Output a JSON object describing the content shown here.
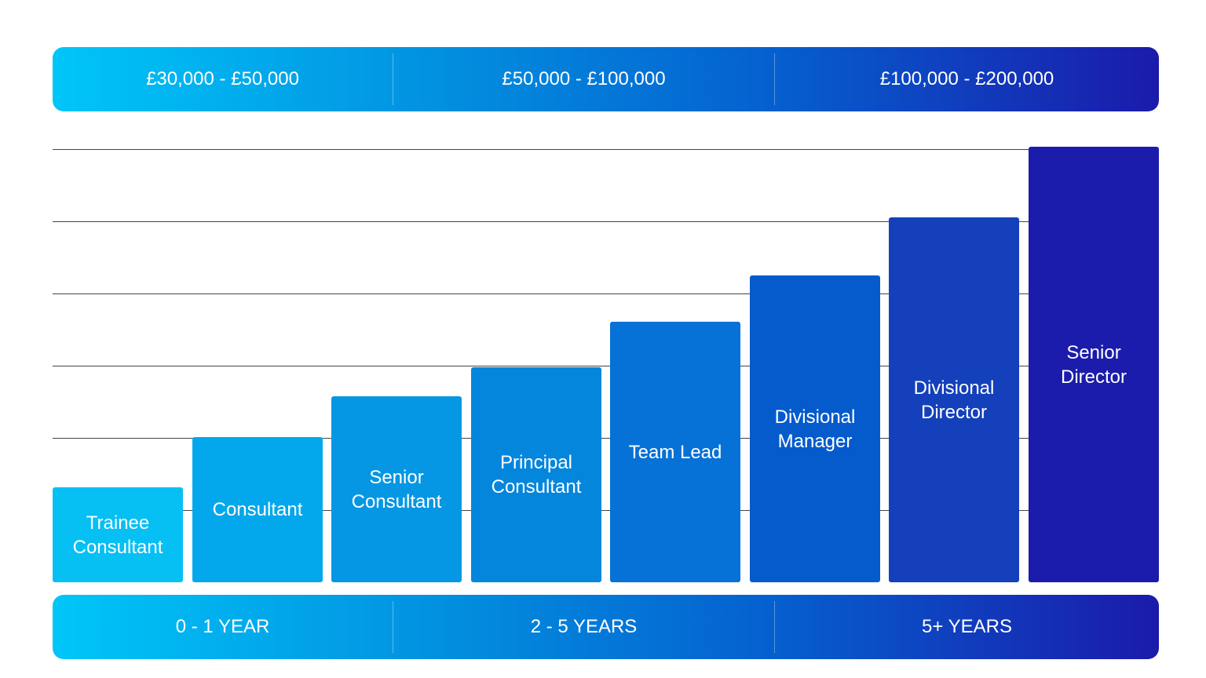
{
  "salary_bands": [
    "£30,000 - £50,000",
    "£50,000 - £100,000",
    "£100,000 - £200,000"
  ],
  "roles": [
    "Trainee Consultant",
    "Consultant",
    "Senior Consultant",
    "Principal Consultant",
    "Team Lead",
    "Divisional Manager",
    "Divisional Director",
    "Senior Director"
  ],
  "experience_bands": [
    "0 - 1 YEAR",
    "2 - 5 YEARS",
    "5+ YEARS"
  ]
}
